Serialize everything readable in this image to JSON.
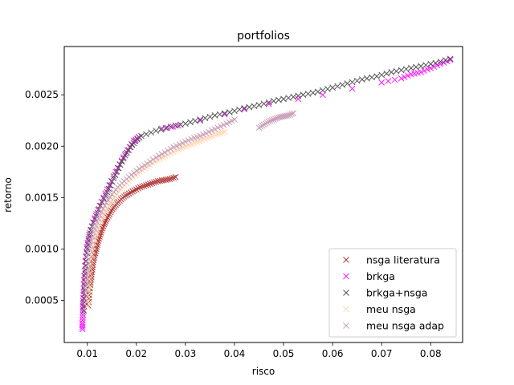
{
  "chart_data": {
    "type": "scatter",
    "title": "portfolios",
    "xlabel": "risco",
    "ylabel": "retorno",
    "xlim": [
      0.0053,
      0.0865
    ],
    "ylim": [
      9e-05,
      0.00297
    ],
    "xticks": [
      {
        "value": 0.01,
        "label": "0.01"
      },
      {
        "value": 0.02,
        "label": "0.02"
      },
      {
        "value": 0.03,
        "label": "0.03"
      },
      {
        "value": 0.04,
        "label": "0.04"
      },
      {
        "value": 0.05,
        "label": "0.05"
      },
      {
        "value": 0.06,
        "label": "0.06"
      },
      {
        "value": 0.07,
        "label": "0.07"
      },
      {
        "value": 0.08,
        "label": "0.08"
      }
    ],
    "yticks": [
      {
        "value": 0.0005,
        "label": "0.0005"
      },
      {
        "value": 0.001,
        "label": "0.0010"
      },
      {
        "value": 0.0015,
        "label": "0.0015"
      },
      {
        "value": 0.002,
        "label": "0.0020"
      },
      {
        "value": 0.0025,
        "label": "0.0025"
      }
    ],
    "grid": false,
    "legend_position": "lower-right",
    "marker": "x",
    "series": [
      {
        "name": "nsga literatura",
        "color": "#b03a3a",
        "points": [
          [
            0.0102,
            0.00045
          ],
          [
            0.0104,
            0.00055
          ],
          [
            0.0106,
            0.00065
          ],
          [
            0.0108,
            0.00073
          ],
          [
            0.011,
            0.0008
          ],
          [
            0.0112,
            0.00087
          ],
          [
            0.0115,
            0.00094
          ],
          [
            0.0118,
            0.001
          ],
          [
            0.0121,
            0.00106
          ],
          [
            0.0125,
            0.00112
          ],
          [
            0.0129,
            0.00118
          ],
          [
            0.0134,
            0.00124
          ],
          [
            0.0139,
            0.00129
          ],
          [
            0.0145,
            0.00134
          ],
          [
            0.0151,
            0.00139
          ],
          [
            0.0158,
            0.00143
          ],
          [
            0.0166,
            0.00147
          ],
          [
            0.0175,
            0.00151
          ],
          [
            0.0185,
            0.00154
          ],
          [
            0.0196,
            0.00157
          ],
          [
            0.0208,
            0.0016
          ],
          [
            0.022,
            0.00162
          ],
          [
            0.0232,
            0.00164
          ],
          [
            0.0244,
            0.00166
          ],
          [
            0.0256,
            0.00167
          ],
          [
            0.0268,
            0.00168
          ],
          [
            0.028,
            0.0017
          ]
        ]
      },
      {
        "name": "brkga",
        "color": "#ff1aff",
        "points": [
          [
            0.009,
            0.00022
          ],
          [
            0.009,
            0.00028
          ],
          [
            0.0091,
            0.00036
          ],
          [
            0.0091,
            0.00044
          ],
          [
            0.0092,
            0.00052
          ],
          [
            0.0093,
            0.00062
          ],
          [
            0.0094,
            0.00074
          ],
          [
            0.0096,
            0.00088
          ],
          [
            0.0099,
            0.00102
          ],
          [
            0.0104,
            0.00114
          ],
          [
            0.0112,
            0.00126
          ],
          [
            0.0122,
            0.00138
          ],
          [
            0.0133,
            0.0015
          ],
          [
            0.0145,
            0.00162
          ],
          [
            0.0158,
            0.00175
          ],
          [
            0.017,
            0.00186
          ],
          [
            0.0182,
            0.00196
          ],
          [
            0.0195,
            0.00205
          ],
          [
            0.0205,
            0.00209
          ],
          [
            0.0252,
            0.00217
          ],
          [
            0.0285,
            0.0022
          ],
          [
            0.033,
            0.00225
          ],
          [
            0.038,
            0.00231
          ],
          [
            0.042,
            0.00236
          ],
          [
            0.047,
            0.00241
          ],
          [
            0.053,
            0.00246
          ],
          [
            0.058,
            0.0025
          ],
          [
            0.064,
            0.00256
          ],
          [
            0.07,
            0.00262
          ],
          [
            0.074,
            0.00266
          ],
          [
            0.076,
            0.0027
          ],
          [
            0.078,
            0.00272
          ],
          [
            0.08,
            0.00276
          ],
          [
            0.082,
            0.0028
          ],
          [
            0.084,
            0.00284
          ]
        ]
      },
      {
        "name": "brkga+nsga",
        "color": "#555555",
        "points": [
          [
            0.0093,
            0.0004
          ],
          [
            0.0094,
            0.00052
          ],
          [
            0.0095,
            0.00064
          ],
          [
            0.0096,
            0.00076
          ],
          [
            0.0098,
            0.00088
          ],
          [
            0.01,
            0.001
          ],
          [
            0.0104,
            0.00112
          ],
          [
            0.011,
            0.00122
          ],
          [
            0.0118,
            0.00132
          ],
          [
            0.0127,
            0.00142
          ],
          [
            0.0137,
            0.00152
          ],
          [
            0.0147,
            0.00162
          ],
          [
            0.0157,
            0.00172
          ],
          [
            0.0167,
            0.00182
          ],
          [
            0.0177,
            0.00191
          ],
          [
            0.0188,
            0.00199
          ],
          [
            0.0198,
            0.00205
          ],
          [
            0.021,
            0.0021
          ],
          [
            0.024,
            0.00215
          ],
          [
            0.027,
            0.00219
          ],
          [
            0.03,
            0.00222
          ],
          [
            0.033,
            0.00226
          ],
          [
            0.036,
            0.0023
          ],
          [
            0.039,
            0.00233
          ],
          [
            0.042,
            0.00237
          ],
          [
            0.045,
            0.0024
          ],
          [
            0.048,
            0.00244
          ],
          [
            0.051,
            0.00247
          ],
          [
            0.054,
            0.0025
          ],
          [
            0.057,
            0.00253
          ],
          [
            0.06,
            0.00257
          ],
          [
            0.063,
            0.00261
          ],
          [
            0.066,
            0.00265
          ],
          [
            0.069,
            0.00268
          ],
          [
            0.072,
            0.00272
          ],
          [
            0.075,
            0.00275
          ],
          [
            0.078,
            0.00278
          ],
          [
            0.081,
            0.00281
          ],
          [
            0.084,
            0.00285
          ]
        ]
      },
      {
        "name": "meu nsga",
        "color": "#ffd7b5",
        "points": [
          [
            0.01,
            0.00044
          ],
          [
            0.0102,
            0.0006
          ],
          [
            0.0105,
            0.00076
          ],
          [
            0.0108,
            0.0009
          ],
          [
            0.0112,
            0.00102
          ],
          [
            0.0117,
            0.00112
          ],
          [
            0.0123,
            0.00121
          ],
          [
            0.013,
            0.0013
          ],
          [
            0.0138,
            0.00137
          ],
          [
            0.0147,
            0.00144
          ],
          [
            0.0157,
            0.00151
          ],
          [
            0.0168,
            0.00158
          ],
          [
            0.018,
            0.00164
          ],
          [
            0.0193,
            0.0017
          ],
          [
            0.0207,
            0.00175
          ],
          [
            0.0222,
            0.0018
          ],
          [
            0.0238,
            0.00185
          ],
          [
            0.0254,
            0.00189
          ],
          [
            0.027,
            0.00193
          ],
          [
            0.0286,
            0.00197
          ],
          [
            0.0302,
            0.002
          ],
          [
            0.0318,
            0.00203
          ],
          [
            0.0334,
            0.00206
          ],
          [
            0.035,
            0.00209
          ],
          [
            0.0366,
            0.00212
          ],
          [
            0.038,
            0.00214
          ]
        ]
      },
      {
        "name": "meu nsga adap",
        "color": "#c9a0b8",
        "points": [
          [
            0.0098,
            0.0006
          ],
          [
            0.01,
            0.00075
          ],
          [
            0.0103,
            0.0009
          ],
          [
            0.0107,
            0.00104
          ],
          [
            0.0113,
            0.00116
          ],
          [
            0.012,
            0.00126
          ],
          [
            0.0129,
            0.00136
          ],
          [
            0.0139,
            0.00145
          ],
          [
            0.015,
            0.00153
          ],
          [
            0.0162,
            0.0016
          ],
          [
            0.0175,
            0.00166
          ],
          [
            0.019,
            0.00172
          ],
          [
            0.0206,
            0.00178
          ],
          [
            0.0222,
            0.00183
          ],
          [
            0.024,
            0.00189
          ],
          [
            0.0258,
            0.00194
          ],
          [
            0.0276,
            0.00199
          ],
          [
            0.0294,
            0.00203
          ],
          [
            0.0312,
            0.00207
          ],
          [
            0.033,
            0.0021
          ],
          [
            0.0348,
            0.00214
          ],
          [
            0.0366,
            0.00218
          ],
          [
            0.0384,
            0.00222
          ],
          [
            0.04,
            0.00226
          ],
          [
            0.045,
            0.00218
          ],
          [
            0.046,
            0.00221
          ],
          [
            0.047,
            0.00224
          ],
          [
            0.048,
            0.00226
          ],
          [
            0.049,
            0.00228
          ],
          [
            0.05,
            0.00229
          ],
          [
            0.051,
            0.0023
          ],
          [
            0.052,
            0.00232
          ]
        ]
      }
    ]
  }
}
